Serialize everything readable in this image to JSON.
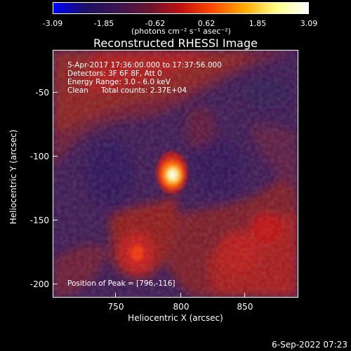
{
  "colorbar": {
    "min": -3.09,
    "max": 3.09,
    "tick_labels": [
      "-3.09",
      "-1.85",
      "-0.62",
      "0.62",
      "1.85",
      "3.09"
    ],
    "units": "(photons cm⁻² s⁻¹ asec⁻²)",
    "colormap": [
      "#0000ff",
      "#1a1066",
      "#3a1450",
      "#6a1530",
      "#c01010",
      "#ff4a00",
      "#ffaa00",
      "#ffff88",
      "#ffffff"
    ]
  },
  "title": "Reconstructed RHESSI Image",
  "annotations": {
    "time_range": "5-Apr-2017 17:36:00.000 to 17:37:56.000",
    "detectors": "Detectors: 3F 6F 8F, Att 0",
    "energy_range": "Energy Range: 3.0 - 6.0 keV",
    "algorithm": "Clean",
    "total_counts": "Total counts: 2.37E+04",
    "peak_position": "Position of Peak = [796,-116]"
  },
  "x_axis": {
    "title": "Heliocentric X (arcsec)",
    "tick_labels": [
      "750",
      "800",
      "850"
    ]
  },
  "y_axis": {
    "title": "Heliocentric Y (arcsec)",
    "tick_labels": [
      "-50",
      "-100",
      "-150",
      "-200"
    ]
  },
  "timestamp": "6-Sep-2022 07:23"
}
